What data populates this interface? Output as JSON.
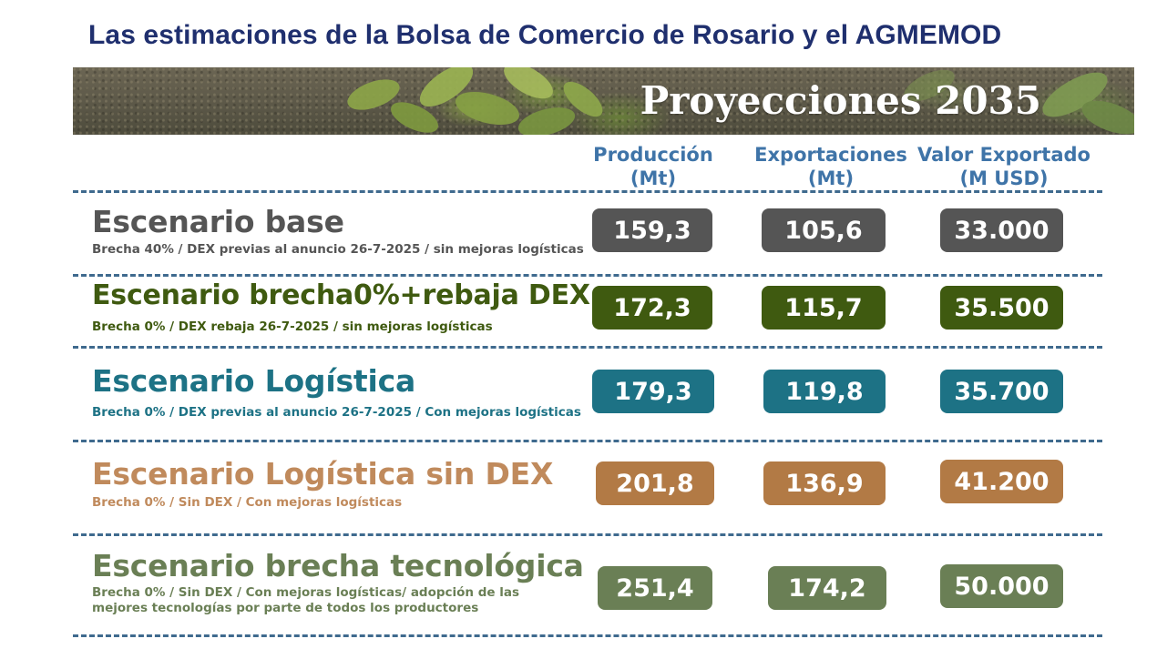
{
  "page_title": "Las estimaciones de la Bolsa de Comercio de Rosario y el AGMEMOD",
  "banner": {
    "title": "Proyecciones 2035"
  },
  "columns": [
    {
      "line1": "Producción",
      "line2": "(Mt)"
    },
    {
      "line1": "Exportaciones",
      "line2": "(Mt)"
    },
    {
      "line1": "Valor Exportado",
      "line2": "(M USD)"
    }
  ],
  "colors": {
    "title": "#1f2f6e",
    "header": "#3f74a8",
    "divider": "#3f6a8e",
    "base": "#555555",
    "brecha": "#3f5a10",
    "logistica": "#1d7285",
    "sin_dex": "#b27a45",
    "tecnologica": "#6a7f55"
  },
  "scenarios": [
    {
      "title": "Escenario base",
      "desc_lines": [
        "Brecha 40% / DEX previas al anuncio 26-7-2025 / sin mejoras logísticas"
      ],
      "values": [
        "159,3",
        "105,6",
        "33.000"
      ]
    },
    {
      "title": "Escenario brecha0%+rebaja DEX",
      "desc_lines": [
        "Brecha 0% / DEX rebaja 26-7-2025 / sin mejoras logísticas"
      ],
      "values": [
        "172,3",
        "115,7",
        "35.500"
      ]
    },
    {
      "title": "Escenario Logística",
      "desc_lines": [
        "Brecha 0% / DEX previas al anuncio 26-7-2025 / Con mejoras logísticas"
      ],
      "values": [
        "179,3",
        "119,8",
        "35.700"
      ]
    },
    {
      "title": "Escenario Logística sin DEX",
      "desc_lines": [
        "Brecha 0% / Sin DEX / Con mejoras logísticas"
      ],
      "values": [
        "201,8",
        "136,9",
        "41.200"
      ]
    },
    {
      "title": "Escenario brecha tecnológica",
      "desc_lines": [
        "Brecha 0% / Sin DEX / Con mejoras logísticas/ adopción de las",
        "mejores tecnologías por parte de todos los productores"
      ],
      "values": [
        "251,4",
        "174,2",
        "50.000"
      ]
    }
  ]
}
